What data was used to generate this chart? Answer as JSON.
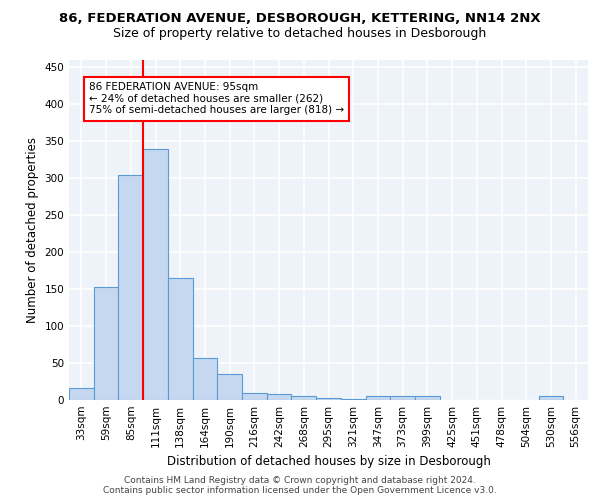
{
  "title1": "86, FEDERATION AVENUE, DESBOROUGH, KETTERING, NN14 2NX",
  "title2": "Size of property relative to detached houses in Desborough",
  "xlabel": "Distribution of detached houses by size in Desborough",
  "ylabel": "Number of detached properties",
  "footer1": "Contains HM Land Registry data © Crown copyright and database right 2024.",
  "footer2": "Contains public sector information licensed under the Open Government Licence v3.0.",
  "bar_labels": [
    "33sqm",
    "59sqm",
    "85sqm",
    "111sqm",
    "138sqm",
    "164sqm",
    "190sqm",
    "216sqm",
    "242sqm",
    "268sqm",
    "295sqm",
    "321sqm",
    "347sqm",
    "373sqm",
    "399sqm",
    "425sqm",
    "451sqm",
    "478sqm",
    "504sqm",
    "530sqm",
    "556sqm"
  ],
  "bar_values": [
    16,
    153,
    305,
    340,
    165,
    57,
    35,
    10,
    8,
    6,
    3,
    2,
    5,
    5,
    5,
    0,
    0,
    0,
    0,
    5,
    0
  ],
  "bar_color": "#c5d8f0",
  "bar_edgecolor": "#5b9bd5",
  "bar_linewidth": 0.8,
  "property_line_color": "red",
  "property_line_xindex": 2.5,
  "annotation_text": "86 FEDERATION AVENUE: 95sqm\n← 24% of detached houses are smaller (262)\n75% of semi-detached houses are larger (818) →",
  "annotation_box_edgecolor": "red",
  "annotation_box_facecolor": "white",
  "ylim": [
    0,
    460
  ],
  "background_color": "#eef2f9",
  "grid_color": "#ffffff",
  "title1_fontsize": 9.5,
  "title2_fontsize": 9,
  "xlabel_fontsize": 8.5,
  "ylabel_fontsize": 8.5,
  "tick_fontsize": 7.5,
  "annotation_fontsize": 7.5,
  "footer_fontsize": 6.5
}
